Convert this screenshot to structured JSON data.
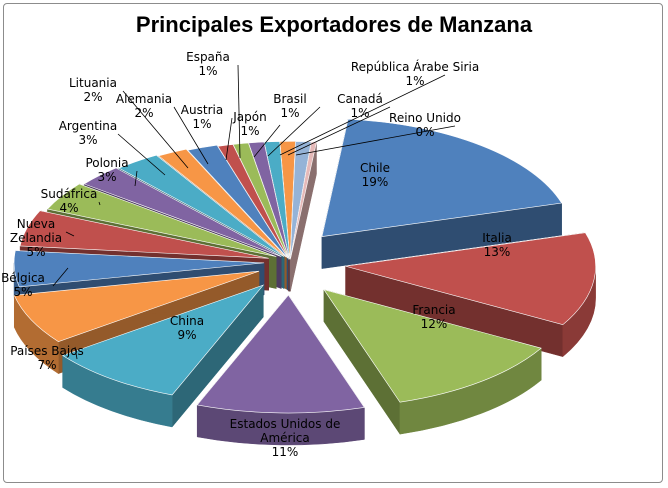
{
  "chart_data": {
    "type": "pie",
    "title": "Principales Exportadores de Manzana",
    "value_format": "percent",
    "slices": [
      {
        "label": "Chile",
        "value": 19,
        "color": "#4F81BD"
      },
      {
        "label": "Italia",
        "value": 13,
        "color": "#C0504D"
      },
      {
        "label": "Francia",
        "value": 12,
        "color": "#9BBB59"
      },
      {
        "label": "Estados Unidos de América",
        "value": 11,
        "color": "#8064A2"
      },
      {
        "label": "China",
        "value": 9,
        "color": "#4BACC6"
      },
      {
        "label": "Países Bajos",
        "value": 7,
        "color": "#F79646"
      },
      {
        "label": "Bélgica",
        "value": 5,
        "color": "#4F81BD"
      },
      {
        "label": "Nueva Zelandia",
        "value": 5,
        "color": "#C0504D"
      },
      {
        "label": "Sudáfrica",
        "value": 4,
        "color": "#9BBB59"
      },
      {
        "label": "Polonia",
        "value": 3,
        "color": "#8064A2"
      },
      {
        "label": "Argentina",
        "value": 3,
        "color": "#4BACC6"
      },
      {
        "label": "Lituania",
        "value": 2,
        "color": "#F79646"
      },
      {
        "label": "Alemania",
        "value": 2,
        "color": "#4F81BD"
      },
      {
        "label": "Austria",
        "value": 1,
        "color": "#C0504D"
      },
      {
        "label": "España",
        "value": 1,
        "color": "#9BBB59"
      },
      {
        "label": "Japón",
        "value": 1,
        "color": "#8064A2"
      },
      {
        "label": "Brasil",
        "value": 1,
        "color": "#4BACC6"
      },
      {
        "label": "República Árabe Siria",
        "value": 1,
        "color": "#F79646"
      },
      {
        "label": "Canadá",
        "value": 1,
        "color": "#95B3D7"
      },
      {
        "label": "Reino Unido",
        "value": 0,
        "color": "#E6B9B8"
      }
    ]
  }
}
